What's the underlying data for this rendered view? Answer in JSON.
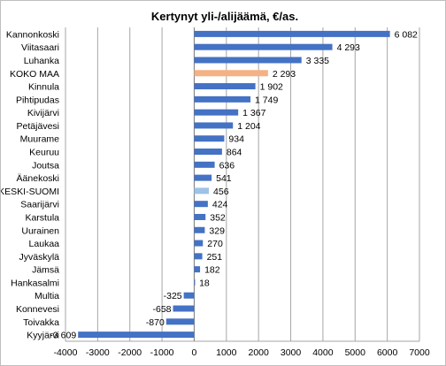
{
  "chart_data": {
    "type": "bar",
    "orientation": "horizontal",
    "title": "Kertynyt yli-/alijäämä, €/as.",
    "categories": [
      "Kannonkoski",
      "Viitasaari",
      "Luhanka",
      "KOKO MAA",
      "Kinnula",
      "Pihtipudas",
      "Kivijärvi",
      "Petäjävesi",
      "Muurame",
      "Keuruu",
      "Joutsa",
      "Äänekoski",
      "KESKI-SUOMI",
      "Saarijärvi",
      "Karstula",
      "Uurainen",
      "Laukaa",
      "Jyväskylä",
      "Jämsä",
      "Hankasalmi",
      "Multia",
      "Konnevesi",
      "Toivakka",
      "Kyyjärvi"
    ],
    "values": [
      6082,
      4293,
      3335,
      2293,
      1902,
      1749,
      1367,
      1204,
      934,
      864,
      636,
      541,
      456,
      424,
      352,
      329,
      270,
      251,
      182,
      18,
      -325,
      -658,
      -870,
      -3609
    ],
    "value_labels": [
      "6 082",
      "4 293",
      "3 335",
      "2 293",
      "1 902",
      "1 749",
      "1 367",
      "1 204",
      "934",
      "864",
      "636",
      "541",
      "456",
      "424",
      "352",
      "329",
      "270",
      "251",
      "182",
      "18",
      "-325",
      "-658",
      "-870",
      "-3 609"
    ],
    "xlim": [
      -4000,
      7000
    ],
    "xticks": [
      -4000,
      -3000,
      -2000,
      -1000,
      0,
      1000,
      2000,
      3000,
      4000,
      5000,
      6000,
      7000
    ],
    "xtick_labels": [
      "-4000",
      "-3000",
      "-2000",
      "-1000",
      "0",
      "1000",
      "2000",
      "3000",
      "4000",
      "5000",
      "6000",
      "7000"
    ],
    "grid": true,
    "colors": {
      "default": "#4472c4",
      "KOKO MAA": "#f4b183",
      "KESKI-SUOMI": "#9dc3e6",
      "grid": "#a6a6a6"
    }
  }
}
